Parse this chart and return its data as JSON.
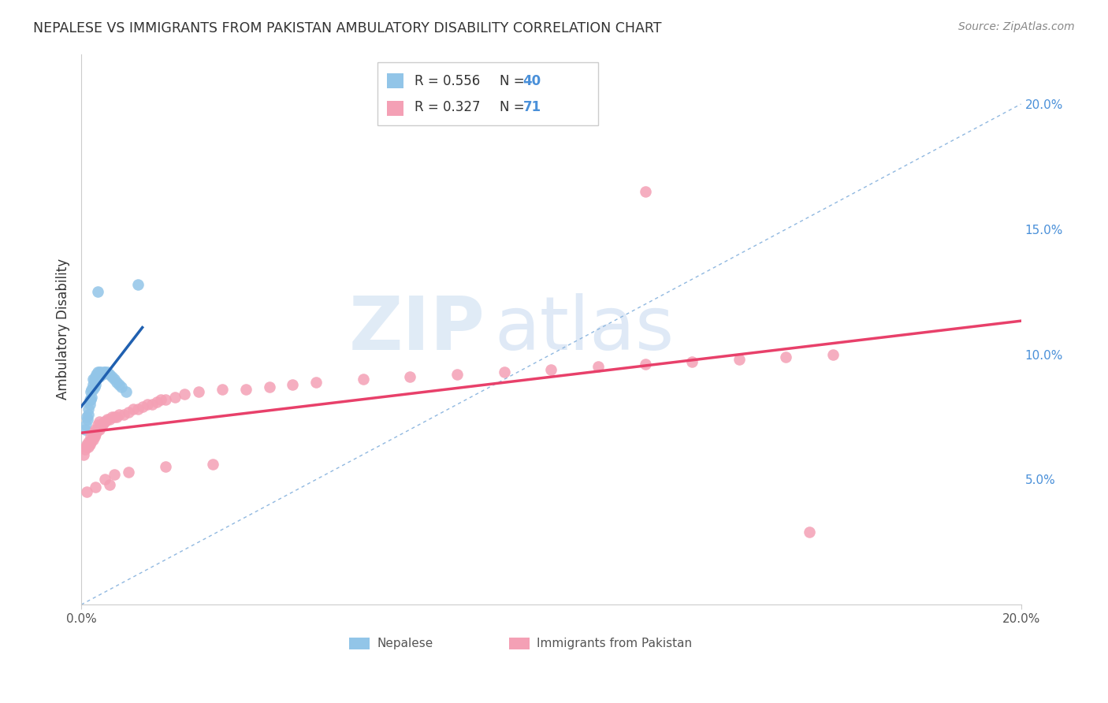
{
  "title": "NEPALESE VS IMMIGRANTS FROM PAKISTAN AMBULATORY DISABILITY CORRELATION CHART",
  "source": "Source: ZipAtlas.com",
  "ylabel": "Ambulatory Disability",
  "x_min": 0.0,
  "x_max": 0.2,
  "y_min": 0.0,
  "y_max": 0.22,
  "y_ticks_right": [
    0.05,
    0.1,
    0.15,
    0.2
  ],
  "y_tick_labels_right": [
    "5.0%",
    "10.0%",
    "15.0%",
    "20.0%"
  ],
  "nepalese_color": "#92C5E8",
  "pakistan_color": "#F4A0B5",
  "nepalese_line_color": "#2060B0",
  "pakistan_line_color": "#E8406A",
  "dashed_line_color": "#90B8E0",
  "watermark_zip": "ZIP",
  "watermark_atlas": "atlas",
  "nepalese_x": [
    0.0008,
    0.001,
    0.0012,
    0.0013,
    0.0015,
    0.0015,
    0.0018,
    0.0018,
    0.002,
    0.002,
    0.0022,
    0.0022,
    0.0025,
    0.0025,
    0.0025,
    0.0028,
    0.0028,
    0.003,
    0.003,
    0.0032,
    0.0032,
    0.0035,
    0.0035,
    0.0038,
    0.0038,
    0.004,
    0.0042,
    0.0045,
    0.0048,
    0.005,
    0.0055,
    0.006,
    0.0065,
    0.007,
    0.0075,
    0.008,
    0.0085,
    0.0095,
    0.0035,
    0.012
  ],
  "nepalese_y": [
    0.07,
    0.072,
    0.075,
    0.074,
    0.076,
    0.078,
    0.08,
    0.082,
    0.082,
    0.085,
    0.083,
    0.086,
    0.086,
    0.088,
    0.09,
    0.087,
    0.09,
    0.088,
    0.091,
    0.09,
    0.092,
    0.091,
    0.093,
    0.091,
    0.093,
    0.092,
    0.093,
    0.092,
    0.093,
    0.093,
    0.093,
    0.092,
    0.091,
    0.09,
    0.089,
    0.088,
    0.087,
    0.085,
    0.125,
    0.128
  ],
  "pakistan_x": [
    0.0005,
    0.0008,
    0.001,
    0.0012,
    0.0015,
    0.0015,
    0.0018,
    0.002,
    0.002,
    0.0022,
    0.0025,
    0.0025,
    0.0028,
    0.0028,
    0.003,
    0.003,
    0.0032,
    0.0035,
    0.0035,
    0.0038,
    0.0038,
    0.004,
    0.0042,
    0.0045,
    0.0048,
    0.005,
    0.0055,
    0.006,
    0.0065,
    0.007,
    0.0075,
    0.008,
    0.009,
    0.01,
    0.011,
    0.012,
    0.013,
    0.014,
    0.015,
    0.016,
    0.017,
    0.018,
    0.02,
    0.022,
    0.025,
    0.03,
    0.035,
    0.04,
    0.045,
    0.05,
    0.06,
    0.07,
    0.08,
    0.09,
    0.1,
    0.11,
    0.12,
    0.13,
    0.14,
    0.15,
    0.16,
    0.0012,
    0.003,
    0.005,
    0.007,
    0.01,
    0.018,
    0.028,
    0.006,
    0.12,
    0.155
  ],
  "pakistan_y": [
    0.06,
    0.062,
    0.063,
    0.064,
    0.063,
    0.065,
    0.064,
    0.065,
    0.067,
    0.066,
    0.066,
    0.068,
    0.067,
    0.069,
    0.068,
    0.07,
    0.069,
    0.07,
    0.072,
    0.07,
    0.073,
    0.071,
    0.072,
    0.072,
    0.073,
    0.073,
    0.074,
    0.074,
    0.075,
    0.075,
    0.075,
    0.076,
    0.076,
    0.077,
    0.078,
    0.078,
    0.079,
    0.08,
    0.08,
    0.081,
    0.082,
    0.082,
    0.083,
    0.084,
    0.085,
    0.086,
    0.086,
    0.087,
    0.088,
    0.089,
    0.09,
    0.091,
    0.092,
    0.093,
    0.094,
    0.095,
    0.096,
    0.097,
    0.098,
    0.099,
    0.1,
    0.045,
    0.047,
    0.05,
    0.052,
    0.053,
    0.055,
    0.056,
    0.048,
    0.165,
    0.029
  ]
}
